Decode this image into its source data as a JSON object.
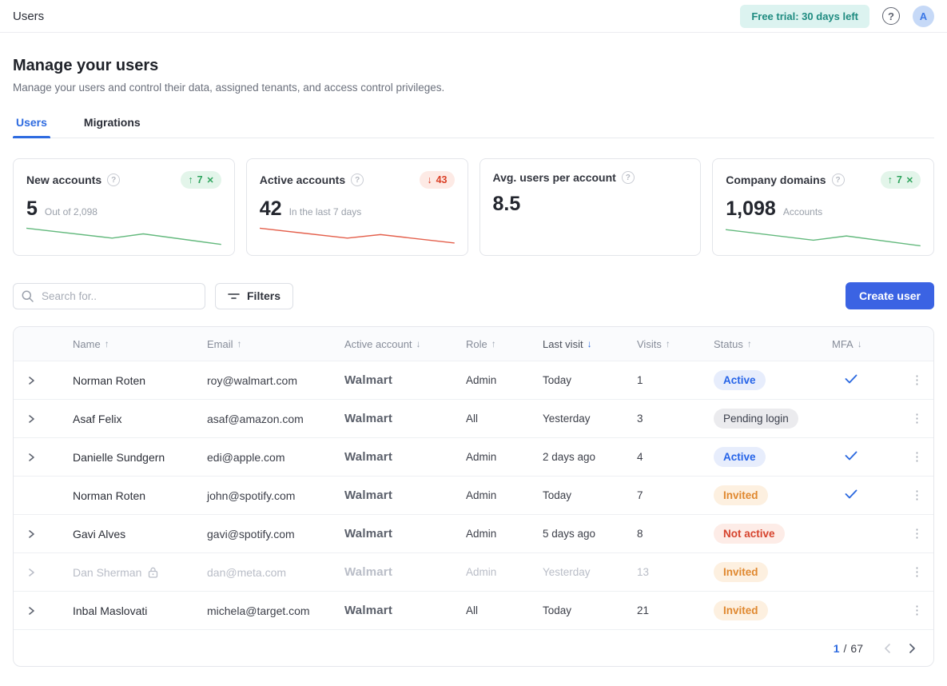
{
  "header": {
    "title": "Users",
    "trial_badge": "Free trial: 30 days left",
    "avatar_initial": "A"
  },
  "page": {
    "title": "Manage your users",
    "subtitle": "Manage your users and control their data, assigned tenants, and access control privileges."
  },
  "tabs": [
    {
      "label": "Users",
      "active": true
    },
    {
      "label": "Migrations",
      "active": false
    }
  ],
  "cards": [
    {
      "title": "New accounts",
      "value": "5",
      "sub": "Out of 2,098",
      "badge": {
        "text": "7",
        "direction": "up",
        "color": "green",
        "dismissible": true
      },
      "spark": {
        "color": "#63b97d",
        "points": [
          [
            0,
            13
          ],
          [
            44,
            27
          ],
          [
            60,
            21
          ],
          [
            100,
            36
          ]
        ]
      }
    },
    {
      "title": "Active accounts",
      "value": "42",
      "sub": "In the last 7 days",
      "badge": {
        "text": "43",
        "direction": "down",
        "color": "red",
        "dismissible": false
      },
      "spark": {
        "color": "#e4604c",
        "points": [
          [
            0,
            13
          ],
          [
            45,
            27
          ],
          [
            62,
            22
          ],
          [
            100,
            34
          ]
        ]
      }
    },
    {
      "title": "Avg. users per account",
      "value": "8.5",
      "sub": "",
      "badge": null,
      "spark": null
    },
    {
      "title": "Company domains",
      "value": "1,098",
      "sub": "Accounts",
      "badge": {
        "text": "7",
        "direction": "up",
        "color": "green",
        "dismissible": true
      },
      "spark": {
        "color": "#63b97d",
        "points": [
          [
            0,
            15
          ],
          [
            45,
            30
          ],
          [
            62,
            24
          ],
          [
            100,
            38
          ]
        ]
      }
    }
  ],
  "toolbar": {
    "search_placeholder": "Search for..",
    "filters_label": "Filters",
    "create_label": "Create user"
  },
  "table": {
    "columns": [
      {
        "label": "Name",
        "sort": "up",
        "active": false
      },
      {
        "label": "Email",
        "sort": "up",
        "active": false
      },
      {
        "label": "Active account",
        "sort": "down",
        "active": false
      },
      {
        "label": "Role",
        "sort": "up",
        "active": false
      },
      {
        "label": "Last visit",
        "sort": "down",
        "active": true
      },
      {
        "label": "Visits",
        "sort": "up",
        "active": false
      },
      {
        "label": "Status",
        "sort": "up",
        "active": false
      },
      {
        "label": "MFA",
        "sort": "down",
        "active": false
      }
    ],
    "rows": [
      {
        "expandable": true,
        "unread": true,
        "locked": false,
        "disabled": false,
        "name": "Norman Roten",
        "email": "roy@walmart.com",
        "account": "Walmart",
        "role": "Admin",
        "last_visit": "Today",
        "visits": "1",
        "status": "Active",
        "status_type": "active",
        "mfa": true
      },
      {
        "expandable": true,
        "unread": true,
        "locked": false,
        "disabled": false,
        "name": "Asaf Felix",
        "email": "asaf@amazon.com",
        "account": "Walmart",
        "role": "All",
        "last_visit": "Yesterday",
        "visits": "3",
        "status": "Pending login",
        "status_type": "pending",
        "mfa": false
      },
      {
        "expandable": true,
        "unread": false,
        "locked": false,
        "disabled": false,
        "name": "Danielle Sundgern",
        "email": "edi@apple.com",
        "account": "Walmart",
        "role": "Admin",
        "last_visit": "2 days ago",
        "visits": "4",
        "status": "Active",
        "status_type": "active",
        "mfa": true
      },
      {
        "expandable": false,
        "unread": false,
        "locked": false,
        "disabled": false,
        "name": "Norman Roten",
        "email": "john@spotify.com",
        "account": "Walmart",
        "role": "Admin",
        "last_visit": "Today",
        "visits": "7",
        "status": "Invited",
        "status_type": "invited",
        "mfa": true
      },
      {
        "expandable": true,
        "unread": false,
        "locked": false,
        "disabled": false,
        "name": "Gavi Alves",
        "email": "gavi@spotify.com",
        "account": "Walmart",
        "role": "Admin",
        "last_visit": "5 days ago",
        "visits": "8",
        "status": "Not active",
        "status_type": "notactive",
        "mfa": false
      },
      {
        "expandable": true,
        "unread": false,
        "locked": true,
        "disabled": true,
        "name": "Dan Sherman",
        "email": "dan@meta.com",
        "account": "Walmart",
        "role": "Admin",
        "last_visit": "Yesterday",
        "visits": "13",
        "status": "Invited",
        "status_type": "invited",
        "mfa": false
      },
      {
        "expandable": true,
        "unread": false,
        "locked": false,
        "disabled": false,
        "name": "Inbal Maslovati",
        "email": "michela@target.com",
        "account": "Walmart",
        "role": "All",
        "last_visit": "Today",
        "visits": "21",
        "status": "Invited",
        "status_type": "invited",
        "mfa": false
      }
    ],
    "pagination": {
      "current": "1",
      "separator": "/",
      "total": "67"
    }
  },
  "icons": {
    "arrow_up": "↑",
    "arrow_down": "↓",
    "close": "✕",
    "kebab": "⋮",
    "question": "?"
  },
  "colors": {
    "accent_blue": "#2e6be0",
    "button_blue": "#3b63e3",
    "status_active": "#2563e8",
    "status_invited": "#e0882f",
    "status_notactive": "#d6432d",
    "status_pending": "#3c404d",
    "trend_green": "#2ea45d",
    "trend_red": "#da4128",
    "trial_teal": "#1e8b80"
  }
}
